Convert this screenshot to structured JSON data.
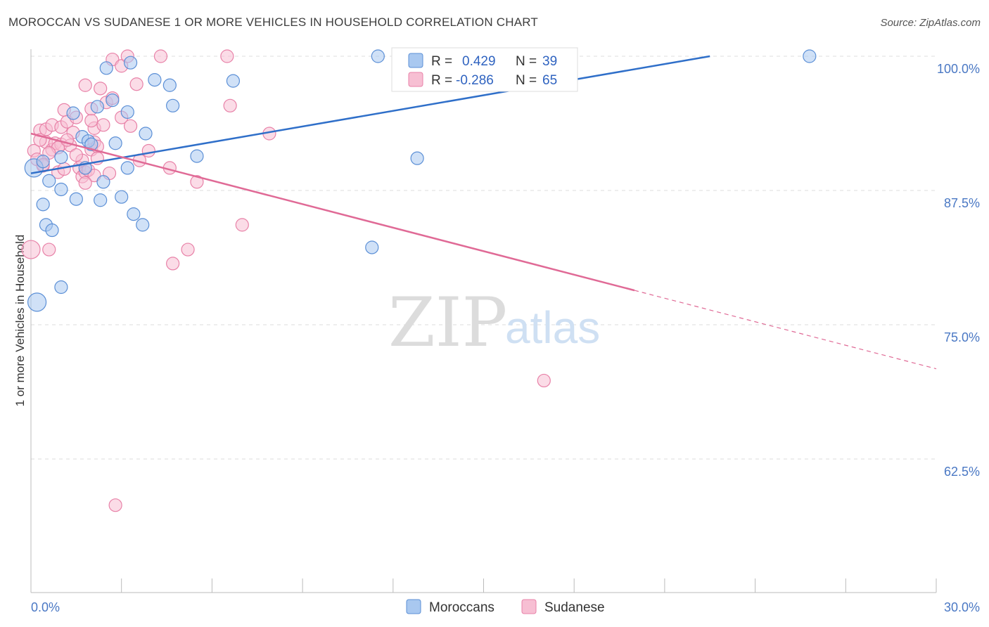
{
  "header": {
    "title": "MOROCCAN VS SUDANESE 1 OR MORE VEHICLES IN HOUSEHOLD CORRELATION CHART",
    "source": "Source: ZipAtlas.com"
  },
  "legend": {
    "r_label": "R =",
    "n_label": "N =",
    "moroccans": {
      "r": "0.429",
      "n": "39"
    },
    "sudanese": {
      "r": "-0.286",
      "n": "65"
    }
  },
  "watermark": {
    "zip": "ZIP",
    "atlas": "atlas"
  },
  "colors": {
    "moroccans_fill": "#a9c8f0",
    "moroccans_stroke": "#5b8fd6",
    "moroccans_line": "#2f6fc9",
    "sudanese_fill": "#f7bfd3",
    "sudanese_stroke": "#e882a8",
    "sudanese_line": "#e06a96",
    "tick_text": "#4a78c4",
    "grid": "#dedede"
  },
  "chart_data": {
    "type": "scatter",
    "title": "MOROCCAN VS SUDANESE 1 OR MORE VEHICLES IN HOUSEHOLD CORRELATION CHART",
    "xlabel": "",
    "ylabel": "1 or more Vehicles in Household",
    "xlim": [
      0,
      30
    ],
    "ylim": [
      51,
      100.5
    ],
    "x_ticks": [
      "0.0%",
      "30.0%"
    ],
    "y_ticks": [
      {
        "value": 100.0,
        "label": "100.0%"
      },
      {
        "value": 87.5,
        "label": "87.5%"
      },
      {
        "value": 75.0,
        "label": "75.0%"
      },
      {
        "value": 62.5,
        "label": "62.5%"
      }
    ],
    "grid": true,
    "legend_position": "top-center",
    "series": [
      {
        "name": "Moroccans",
        "trend": {
          "x_start": 0.0,
          "y_start": 89.1,
          "x_end": 22.5,
          "y_end": 100.0,
          "dashed_after": 22.5
        },
        "points": [
          [
            0.1,
            89.6
          ],
          [
            0.4,
            90.2
          ],
          [
            0.6,
            88.4
          ],
          [
            0.4,
            86.2
          ],
          [
            0.5,
            84.3
          ],
          [
            0.7,
            83.8
          ],
          [
            0.2,
            77.1
          ],
          [
            1.0,
            78.5
          ],
          [
            1.0,
            87.6
          ],
          [
            1.0,
            90.6
          ],
          [
            1.4,
            94.7
          ],
          [
            1.5,
            86.7
          ],
          [
            1.7,
            92.5
          ],
          [
            1.8,
            89.6
          ],
          [
            1.9,
            92.1
          ],
          [
            2.0,
            91.8
          ],
          [
            2.2,
            95.3
          ],
          [
            2.3,
            86.6
          ],
          [
            2.4,
            88.3
          ],
          [
            2.5,
            98.9
          ],
          [
            2.7,
            95.9
          ],
          [
            2.8,
            91.9
          ],
          [
            3.0,
            86.9
          ],
          [
            3.2,
            89.6
          ],
          [
            3.2,
            94.8
          ],
          [
            3.3,
            99.4
          ],
          [
            3.4,
            85.3
          ],
          [
            3.7,
            84.3
          ],
          [
            3.8,
            92.8
          ],
          [
            4.1,
            97.8
          ],
          [
            4.6,
            97.3
          ],
          [
            4.7,
            95.4
          ],
          [
            5.5,
            90.7
          ],
          [
            6.7,
            97.7
          ],
          [
            11.5,
            100.0
          ],
          [
            11.3,
            82.2
          ],
          [
            12.8,
            90.5
          ],
          [
            16.0,
            100.0
          ],
          [
            25.8,
            100.0
          ]
        ]
      },
      {
        "name": "Sudanese",
        "trend": {
          "x_start": 0.0,
          "y_start": 92.8,
          "x_end": 20.0,
          "y_end": 78.2,
          "dashed_end_x": 30.0,
          "dashed_end_y": 70.9
        },
        "points": [
          [
            0.0,
            82.0
          ],
          [
            0.1,
            91.2
          ],
          [
            0.2,
            90.4
          ],
          [
            0.3,
            93.1
          ],
          [
            0.4,
            89.8
          ],
          [
            0.5,
            92.0
          ],
          [
            0.6,
            82.0
          ],
          [
            0.5,
            93.2
          ],
          [
            0.7,
            91.3
          ],
          [
            0.7,
            93.6
          ],
          [
            0.8,
            91.9
          ],
          [
            0.9,
            89.2
          ],
          [
            1.0,
            91.8
          ],
          [
            1.0,
            93.4
          ],
          [
            1.1,
            95.0
          ],
          [
            1.1,
            89.5
          ],
          [
            1.2,
            93.9
          ],
          [
            1.3,
            91.7
          ],
          [
            1.4,
            92.9
          ],
          [
            1.5,
            94.3
          ],
          [
            1.6,
            89.6
          ],
          [
            1.7,
            90.3
          ],
          [
            1.7,
            88.8
          ],
          [
            1.8,
            97.3
          ],
          [
            1.8,
            89.2
          ],
          [
            1.9,
            89.4
          ],
          [
            2.0,
            95.1
          ],
          [
            2.0,
            91.3
          ],
          [
            2.1,
            92.0
          ],
          [
            2.1,
            88.9
          ],
          [
            2.1,
            93.3
          ],
          [
            2.2,
            91.6
          ],
          [
            2.3,
            97.0
          ],
          [
            2.4,
            93.6
          ],
          [
            2.5,
            95.7
          ],
          [
            2.6,
            89.1
          ],
          [
            2.7,
            96.1
          ],
          [
            2.7,
            99.7
          ],
          [
            3.0,
            99.1
          ],
          [
            3.0,
            94.3
          ],
          [
            3.2,
            100.0
          ],
          [
            3.3,
            93.5
          ],
          [
            3.5,
            97.4
          ],
          [
            3.6,
            90.3
          ],
          [
            4.3,
            100.0
          ],
          [
            4.6,
            89.6
          ],
          [
            4.7,
            80.7
          ],
          [
            5.2,
            82.0
          ],
          [
            5.5,
            88.3
          ],
          [
            6.6,
            95.4
          ],
          [
            6.5,
            100.0
          ],
          [
            7.0,
            84.3
          ],
          [
            7.9,
            92.8
          ],
          [
            2.8,
            58.2
          ],
          [
            17.0,
            69.8
          ],
          [
            0.3,
            92.2
          ],
          [
            0.9,
            91.5
          ],
          [
            1.5,
            90.8
          ],
          [
            2.0,
            94.0
          ],
          [
            3.9,
            91.2
          ],
          [
            0.6,
            91.0
          ],
          [
            1.2,
            92.2
          ],
          [
            2.2,
            90.5
          ],
          [
            1.8,
            88.2
          ],
          [
            0.4,
            89.9
          ]
        ]
      }
    ]
  }
}
